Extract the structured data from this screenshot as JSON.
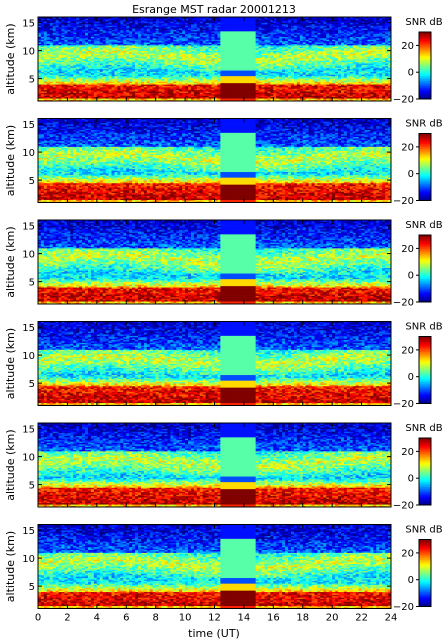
{
  "title": "Esrange MST radar 20001213",
  "chart_data": {
    "type": "heatmap",
    "title": "Esrange MST radar 20001213",
    "xlabel": "time (UT)",
    "ylabel": "altitude (km)",
    "xlim": [
      0,
      24
    ],
    "ylim": [
      1,
      16
    ],
    "x_ticks": [
      "0",
      "2",
      "4",
      "6",
      "8",
      "10",
      "12",
      "14",
      "16",
      "18",
      "20",
      "22",
      "24"
    ],
    "y_ticks": [
      "5",
      "10",
      "15"
    ],
    "colorbar": {
      "label": "SNR dB",
      "range": [
        -20,
        30
      ],
      "ticks": [
        "20",
        "0",
        "−20"
      ],
      "colormap": "jet"
    },
    "panels": [
      {
        "panel": 1,
        "gap_start": 12.4,
        "gap_end": 14.8,
        "high_snr_top_km": 4.0
      },
      {
        "panel": 2,
        "gap_start": 12.4,
        "gap_end": 14.8,
        "high_snr_top_km": 4.5
      },
      {
        "panel": 3,
        "gap_start": 12.4,
        "gap_end": 14.8,
        "high_snr_top_km": 4.0
      },
      {
        "panel": 4,
        "gap_start": 12.4,
        "gap_end": 14.8,
        "high_snr_top_km": 4.5
      },
      {
        "panel": 5,
        "gap_start": 12.4,
        "gap_end": 14.8,
        "high_snr_top_km": 4.5
      },
      {
        "panel": 6,
        "gap_start": 12.4,
        "gap_end": 14.8,
        "high_snr_top_km": 4.0
      }
    ]
  }
}
